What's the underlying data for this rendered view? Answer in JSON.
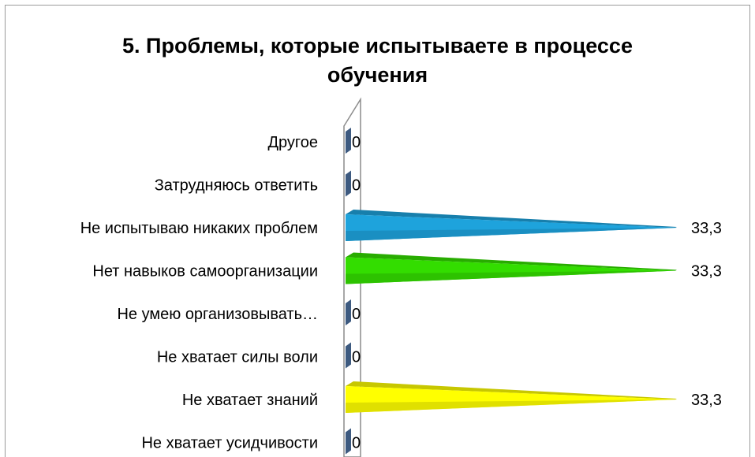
{
  "chart_data": {
    "type": "bar",
    "orientation": "horizontal",
    "title": "5. Проблемы, которые испытываете в процессе обучения",
    "categories": [
      "Другое",
      "Затрудняюсь ответить",
      "Не испытываю никаких проблем",
      "Нет навыков самоорганизации",
      "Не умею организовывать…",
      "Не хватает силы воли",
      "Не хватает знаний",
      "Не хватает усидчивости"
    ],
    "values": [
      0,
      0,
      33.3,
      33.3,
      0,
      0,
      33.3,
      0
    ],
    "value_labels": [
      "0",
      "0",
      "33,3",
      "33,3",
      "0",
      "0",
      "33,3",
      "0"
    ],
    "colors": [
      "#3d5a80",
      "#3d5a80",
      "#1ea3dc",
      "#33dd00",
      "#3d5a80",
      "#3d5a80",
      "#ffff00",
      "#3d5a80"
    ],
    "xlim": [
      0,
      33.3
    ],
    "grid": false,
    "legend": "none"
  }
}
